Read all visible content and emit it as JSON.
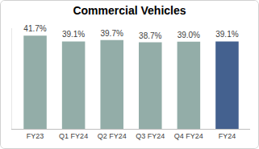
{
  "chart_data": {
    "type": "bar",
    "title": "Commercial Vehicles",
    "categories": [
      "FY23",
      "Q1 FY24",
      "Q2 FY24",
      "Q3 FY24",
      "Q4 FY24",
      "FY24"
    ],
    "values": [
      41.7,
      39.1,
      39.7,
      38.7,
      39.0,
      39.1
    ],
    "value_labels": [
      "41.7%",
      "39.1%",
      "39.7%",
      "38.7%",
      "39.0%",
      "39.1%"
    ],
    "colors": [
      "#93ada8",
      "#93ada8",
      "#93ada8",
      "#93ada8",
      "#93ada8",
      "#44618f"
    ],
    "ylim": [
      0,
      45
    ],
    "grid": false,
    "data_labels": true,
    "tick_labels": "x"
  }
}
